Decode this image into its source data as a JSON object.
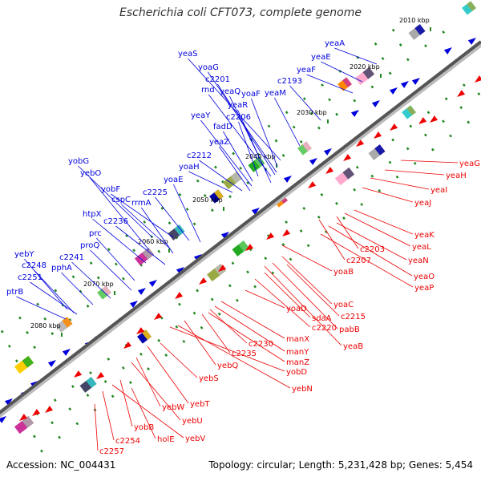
{
  "title": "Escherichia coli CFT073, complete genome",
  "footer": {
    "accession": "Accession: NC_004431",
    "summary": "Topology: circular; Length: 5,231,428 bp; Genes: 5,454"
  },
  "colors": {
    "top_strand": "#0000dd",
    "bottom_strand": "#ee0000",
    "axis_dark": "#555555",
    "axis_light": "#bbbbbb",
    "tick_mark": "#228822"
  },
  "ticks": [
    "2010 kbp",
    "2020 kbp",
    "2030 kbp",
    "2040 kbp",
    "2050 kbp",
    "2060 kbp",
    "2070 kbp",
    "2080 kbp"
  ],
  "top_labels": [
    "yeaA",
    "yeaE",
    "yeaF",
    "c2193",
    "yeaS",
    "yoaG",
    "c2201",
    "rnd",
    "yeaQ",
    "yoaF",
    "yeaM",
    "yeaR",
    "c2206",
    "fadD",
    "yeaY",
    "yeaZ",
    "c2212",
    "yoaH",
    "yobG",
    "yebO",
    "yoaE",
    "yobF",
    "c2225",
    "cspC",
    "rrmA",
    "htpX",
    "c2236",
    "prc",
    "proQ",
    "yebY",
    "c2241",
    "c2248",
    "pphA",
    "c2251",
    "ptrB"
  ],
  "bottom_labels": [
    "yeaG",
    "yeaH",
    "yeaI",
    "yeaJ",
    "yeaK",
    "yeaL",
    "yeaN",
    "yeaO",
    "yeaP",
    "c2203",
    "c2207",
    "yoaB",
    "yoaC",
    "yoaD",
    "c2215",
    "sdaA",
    "c2220",
    "pabB",
    "yeaB",
    "manX",
    "manY",
    "manZ",
    "c2230",
    "c2235",
    "yebQ",
    "yobD",
    "yebN",
    "yebS",
    "yebT",
    "yebW",
    "yebU",
    "yobB",
    "holE",
    "yebV",
    "c2254",
    "c2257"
  ]
}
